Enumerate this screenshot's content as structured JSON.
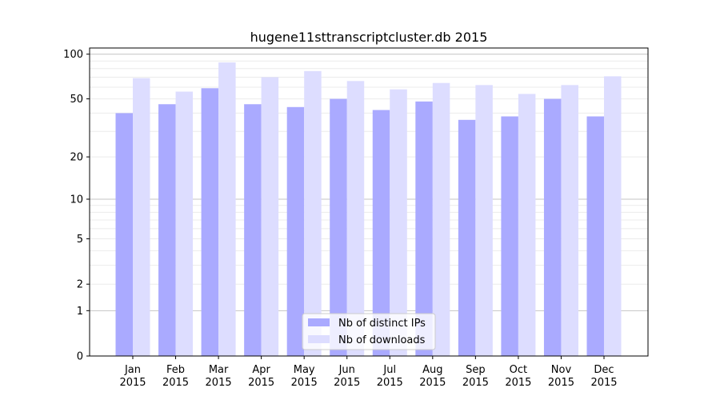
{
  "chart_data": {
    "type": "bar",
    "title": "hugene11sttranscriptcluster.db 2015",
    "xlabel": "",
    "ylabel": "",
    "yscale": "log(1+y)",
    "ylim": [
      0,
      110
    ],
    "yticks": [
      0,
      1,
      2,
      5,
      10,
      20,
      50,
      100
    ],
    "grid": true,
    "legend_placement": "lower-center",
    "categories": [
      "Jan\n2015",
      "Feb\n2015",
      "Mar\n2015",
      "Apr\n2015",
      "May\n2015",
      "Jun\n2015",
      "Jul\n2015",
      "Aug\n2015",
      "Sep\n2015",
      "Oct\n2015",
      "Nov\n2015",
      "Dec\n2015"
    ],
    "series": [
      {
        "name": "Nb of distinct IPs",
        "color": "#aaaaff",
        "values": [
          40,
          46,
          59,
          46,
          44,
          50,
          42,
          48,
          36,
          38,
          50,
          38
        ]
      },
      {
        "name": "Nb of downloads",
        "color": "#ddddff",
        "values": [
          69,
          56,
          88,
          70,
          77,
          66,
          58,
          64,
          62,
          54,
          62,
          71
        ]
      }
    ]
  }
}
